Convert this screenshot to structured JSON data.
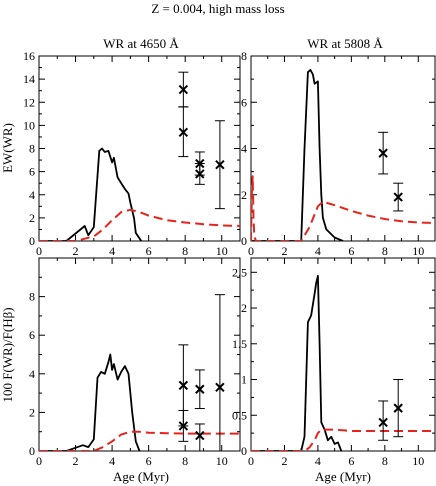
{
  "figure": {
    "title": "Z = 0.004, high mass loss",
    "col_titles": [
      "WR at 4650 Å",
      "WR at 5808 Å"
    ],
    "ylabels": [
      "EW(WR)",
      "100 F(WR)/F(Hβ)"
    ],
    "xlabel": "Age (Myr)"
  },
  "chart_data": [
    {
      "type": "line",
      "panel": "top-left",
      "xlim": [
        0,
        11
      ],
      "ylim": [
        0,
        16
      ],
      "xticks": [
        0,
        2,
        4,
        6,
        8,
        10
      ],
      "yticks": [
        0,
        2,
        4,
        6,
        8,
        10,
        12,
        14,
        16
      ],
      "series": [
        {
          "style": "solid",
          "color": "#000000",
          "x": [
            0,
            1.5,
            2.5,
            2.7,
            3.0,
            3.3,
            3.45,
            3.6,
            3.8,
            4.0,
            4.1,
            4.3,
            4.5,
            4.7,
            4.9,
            5.0,
            5.2,
            5.3,
            5.6
          ],
          "y": [
            0,
            0,
            1.3,
            0.5,
            1.2,
            7.8,
            8.0,
            7.7,
            7.8,
            6.8,
            7.2,
            5.5,
            5.0,
            4.5,
            4.1,
            3.3,
            2.0,
            0.7,
            0
          ]
        },
        {
          "style": "dashed",
          "color": "#e8231e",
          "x": [
            0,
            2.0,
            3.0,
            3.5,
            4.0,
            4.5,
            5.0,
            5.5,
            6,
            7,
            8,
            9,
            10,
            11
          ],
          "y": [
            0,
            0,
            0.4,
            1.0,
            1.8,
            2.5,
            2.7,
            2.5,
            2.2,
            1.8,
            1.6,
            1.45,
            1.35,
            1.3
          ]
        }
      ],
      "points": [
        {
          "x": 7.9,
          "y": 13.1,
          "yerr": [
            11.6,
            14.6
          ]
        },
        {
          "x": 7.9,
          "y": 9.4,
          "yerr": [
            7.3,
            11.6
          ]
        },
        {
          "x": 8.8,
          "y": 6.7,
          "yerr": [
            5.7,
            7.7
          ]
        },
        {
          "x": 8.8,
          "y": 5.8,
          "yerr": [
            4.9,
            6.7
          ]
        },
        {
          "x": 9.9,
          "y": 6.6,
          "yerr": [
            2.8,
            10.4
          ]
        }
      ]
    },
    {
      "type": "line",
      "panel": "top-right",
      "xlim": [
        0,
        11
      ],
      "ylim": [
        0,
        8
      ],
      "xticks": [
        0,
        2,
        4,
        6,
        8,
        10
      ],
      "yticks": [
        0,
        2,
        4,
        6,
        8
      ],
      "series": [
        {
          "style": "solid",
          "color": "#000000",
          "x": [
            0,
            3.0,
            3.2,
            3.4,
            3.55,
            3.7,
            3.8,
            4.0,
            4.1,
            4.2,
            4.3,
            4.5,
            5.0,
            5.5
          ],
          "y": [
            0,
            0,
            4.0,
            7.3,
            7.4,
            7.2,
            6.8,
            6.9,
            4.0,
            2.0,
            1.0,
            0.5,
            0.15,
            0
          ]
        },
        {
          "style": "dashed",
          "color": "#e8231e",
          "x": [
            0,
            0.05,
            0.1,
            0.15,
            0.2,
            0.3,
            3.0,
            3.5,
            4.0,
            4.3,
            5,
            6,
            7,
            8,
            9,
            10,
            11
          ],
          "y": [
            0,
            2.0,
            2.8,
            1.0,
            0.2,
            0,
            0,
            0.6,
            1.5,
            1.7,
            1.55,
            1.3,
            1.1,
            0.95,
            0.85,
            0.8,
            0.78
          ]
        }
      ],
      "points": [
        {
          "x": 7.9,
          "y": 3.8,
          "yerr": [
            2.9,
            4.7
          ]
        },
        {
          "x": 8.8,
          "y": 1.9,
          "yerr": [
            1.3,
            2.5
          ]
        }
      ]
    },
    {
      "type": "line",
      "panel": "bottom-left",
      "xlim": [
        0,
        11
      ],
      "ylim": [
        0,
        10
      ],
      "xticks": [
        0,
        2,
        4,
        6,
        8,
        10
      ],
      "yticks": [
        0,
        2,
        4,
        6,
        8
      ],
      "series": [
        {
          "style": "solid",
          "color": "#000000",
          "x": [
            0,
            1.5,
            2.4,
            2.7,
            3.0,
            3.2,
            3.4,
            3.6,
            3.8,
            3.9,
            4.0,
            4.1,
            4.3,
            4.5,
            4.7,
            4.9,
            5.1,
            5.3,
            5.5
          ],
          "y": [
            0,
            0,
            0.3,
            0.2,
            0.6,
            3.8,
            4.1,
            4.0,
            4.6,
            5.0,
            4.2,
            4.5,
            3.7,
            4.1,
            4.4,
            4.0,
            2.0,
            0.5,
            0
          ]
        },
        {
          "style": "dashed",
          "color": "#e8231e",
          "x": [
            0,
            3.0,
            3.5,
            4.0,
            4.5,
            5.0,
            5.5,
            6,
            7,
            8,
            9,
            10,
            11
          ],
          "y": [
            0,
            0,
            0.2,
            0.5,
            0.85,
            1.0,
            1.0,
            0.95,
            0.92,
            0.9,
            0.9,
            0.9,
            0.9
          ]
        }
      ],
      "points": [
        {
          "x": 7.9,
          "y": 3.4,
          "yerr": [
            1.3,
            5.5
          ]
        },
        {
          "x": 7.9,
          "y": 1.3,
          "yerr": [
            0.5,
            2.1
          ]
        },
        {
          "x": 8.8,
          "y": 3.2,
          "yerr": [
            2.2,
            4.2
          ]
        },
        {
          "x": 8.8,
          "y": 0.8,
          "yerr": [
            0.0,
            1.4
          ]
        },
        {
          "x": 9.9,
          "y": 3.3,
          "yerr": [
            0.0,
            8.1
          ]
        }
      ]
    },
    {
      "type": "line",
      "panel": "bottom-right",
      "xlim": [
        0,
        11
      ],
      "ylim": [
        0,
        2.7
      ],
      "xticks": [
        0,
        2,
        4,
        6,
        8,
        10
      ],
      "yticks": [
        0,
        0.5,
        1,
        1.5,
        2,
        2.5
      ],
      "series": [
        {
          "style": "solid",
          "color": "#000000",
          "x": [
            0,
            3.0,
            3.2,
            3.4,
            3.6,
            3.8,
            3.9,
            4.0,
            4.1,
            4.2,
            4.4,
            4.6,
            4.8,
            5.0,
            5.2,
            5.4
          ],
          "y": [
            0,
            0,
            0.2,
            1.8,
            1.9,
            2.2,
            2.35,
            2.45,
            1.5,
            0.4,
            0.3,
            0.15,
            0.2,
            0.1,
            0.12,
            0
          ]
        },
        {
          "style": "dashed",
          "color": "#e8231e",
          "x": [
            0,
            3.2,
            3.5,
            3.8,
            4.0,
            4.2,
            5,
            6,
            7,
            8,
            9,
            10,
            11
          ],
          "y": [
            0,
            0,
            0.05,
            0.15,
            0.25,
            0.3,
            0.3,
            0.28,
            0.28,
            0.28,
            0.28,
            0.28,
            0.28
          ]
        }
      ],
      "points": [
        {
          "x": 7.9,
          "y": 0.4,
          "yerr": [
            0.15,
            0.7
          ]
        },
        {
          "x": 8.8,
          "y": 0.6,
          "yerr": [
            0.2,
            1.0
          ]
        }
      ]
    }
  ]
}
